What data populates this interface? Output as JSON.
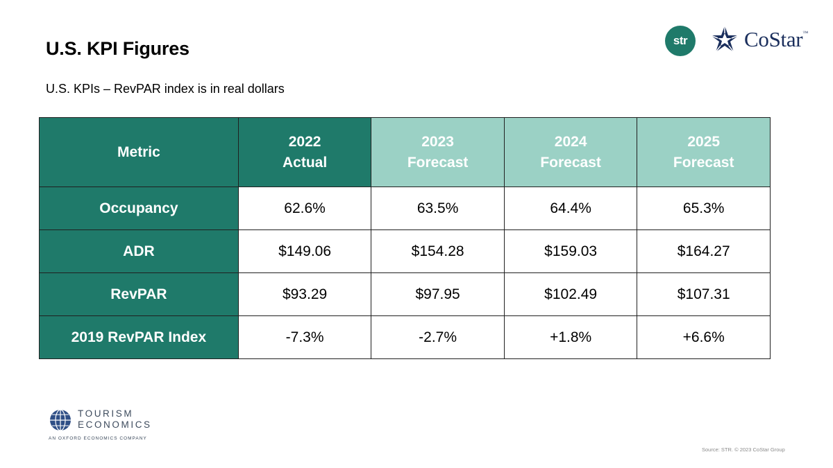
{
  "header": {
    "title": "U.S. KPI Figures",
    "subtitle": "U.S. KPIs – RevPAR index is in real dollars"
  },
  "logos": {
    "str": "str",
    "costar": "CoStar",
    "costar_tm": "™",
    "tourism_line1": "TOURISM",
    "tourism_line2": "ECONOMICS",
    "tourism_sub": "AN OXFORD ECONOMICS COMPANY"
  },
  "table": {
    "metric_header": "Metric",
    "columns": [
      {
        "year": "2022",
        "kind": "Actual"
      },
      {
        "year": "2023",
        "kind": "Forecast"
      },
      {
        "year": "2024",
        "kind": "Forecast"
      },
      {
        "year": "2025",
        "kind": "Forecast"
      }
    ],
    "rows": [
      {
        "metric": "Occupancy",
        "values": [
          "62.6%",
          "63.5%",
          "64.4%",
          "65.3%"
        ]
      },
      {
        "metric": "ADR",
        "values": [
          "$149.06",
          "$154.28",
          "$159.03",
          "$164.27"
        ]
      },
      {
        "metric": "RevPAR",
        "values": [
          "$93.29",
          "$97.95",
          "$102.49",
          "$107.31"
        ]
      },
      {
        "metric": "2019 RevPAR Index",
        "values": [
          "-7.3%",
          "-2.7%",
          "+1.8%",
          "+6.6%"
        ]
      }
    ]
  },
  "footer": {
    "source": "Source: STR. © 2023 CoStar Group"
  },
  "colors": {
    "accent_dark": "#1f7a6a",
    "accent_light": "#9bd1c5",
    "costar_navy": "#1a2e5c"
  }
}
